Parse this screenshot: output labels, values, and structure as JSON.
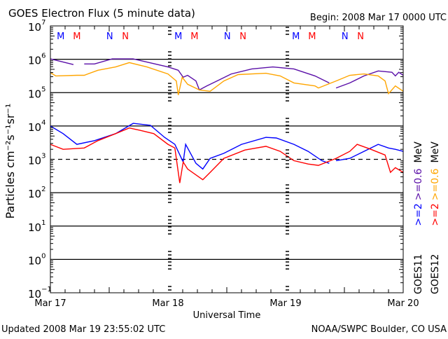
{
  "chart_data": {
    "type": "line",
    "title": "GOES Electron Flux (5 minute data)",
    "begin": "Begin: 2008 Mar 17 0000 UTC",
    "xlabel": "Universal Time",
    "ylabel": "Particles cm⁻²s⁻¹sr⁻¹",
    "x_unit": "hours since begin",
    "xlim": [
      0,
      72
    ],
    "x_ticks": [
      {
        "h": 0,
        "label": "Mar 17"
      },
      {
        "h": 24,
        "label": "Mar 18"
      },
      {
        "h": 48,
        "label": "Mar 19"
      },
      {
        "h": 72,
        "label": "Mar 20"
      }
    ],
    "y_scale": "log",
    "ylim_log10": [
      -1,
      7
    ],
    "y_ticks": [
      {
        "base": "10",
        "exp": "7"
      },
      {
        "base": "10",
        "exp": "6"
      },
      {
        "base": "10",
        "exp": "5"
      },
      {
        "base": "10",
        "exp": "4"
      },
      {
        "base": "10",
        "exp": "3"
      },
      {
        "base": "10",
        "exp": "2"
      },
      {
        "base": "10",
        "exp": "1"
      },
      {
        "base": "10",
        "exp": "0"
      },
      {
        "base": "10",
        "exp": "−1"
      }
    ],
    "threshold_log10": 3,
    "series": [
      {
        "name": "GOES11 >=0.6 MeV",
        "color": "#5a0fa8",
        "x": [
          0,
          4.7,
          null,
          6.9,
          9,
          12.6,
          16.9,
          24,
          26.1,
          27.1,
          28,
          29.7,
          30.4,
          31.9,
          34,
          36.9,
          41.1,
          45.4,
          49.7,
          54,
          56.9,
          null,
          58.3,
          61.1,
          64,
          66.9,
          69.7,
          70.4,
          71.1,
          72
        ],
        "log10_values": [
          6.01,
          5.84,
          null,
          5.86,
          5.86,
          6.01,
          6.01,
          5.77,
          5.67,
          5.46,
          5.52,
          5.35,
          5.08,
          5.2,
          5.35,
          5.56,
          5.71,
          5.77,
          5.71,
          5.5,
          5.29,
          null,
          5.14,
          5.29,
          5.5,
          5.65,
          5.61,
          5.5,
          5.61,
          5.52
        ]
      },
      {
        "name": "GOES12 >=0.6 MeV",
        "color": "#ffa500",
        "x": [
          0,
          1.1,
          5.4,
          6.9,
          9.7,
          13.3,
          16.1,
          19.7,
          24,
          25.7,
          26.1,
          26.9,
          28,
          30.4,
          32.6,
          35.4,
          38.3,
          44,
          46.9,
          49.7,
          54,
          54.7,
          58.3,
          61.1,
          64,
          66.9,
          68.3,
          69,
          70.4,
          72
        ],
        "log10_values": [
          5.6,
          5.5,
          5.52,
          5.52,
          5.67,
          5.77,
          5.9,
          5.77,
          5.56,
          5.35,
          4.93,
          5.46,
          5.25,
          5.08,
          5.04,
          5.35,
          5.54,
          5.58,
          5.5,
          5.29,
          5.2,
          5.14,
          5.35,
          5.52,
          5.56,
          5.5,
          5.35,
          4.97,
          5.2,
          5.04
        ]
      },
      {
        "name": "GOES11 >=2 MeV",
        "color": "#0000ff",
        "x": [
          0,
          2.6,
          5.4,
          9,
          13.3,
          16.9,
          20.4,
          23.3,
          25.4,
          27.1,
          27.6,
          29.7,
          31.1,
          32.6,
          35.4,
          39,
          44,
          46.1,
          49.7,
          52.6,
          55.4,
          56.9,
          null,
          58.3,
          61.1,
          64,
          66.9,
          69,
          70.4,
          72
        ],
        "log10_values": [
          4.0,
          3.77,
          3.45,
          3.56,
          3.77,
          4.08,
          4.02,
          3.66,
          3.45,
          2.92,
          3.45,
          2.88,
          2.71,
          3.03,
          3.18,
          3.45,
          3.66,
          3.64,
          3.45,
          3.24,
          2.96,
          2.88,
          null,
          2.96,
          3.03,
          3.24,
          3.45,
          3.34,
          3.3,
          3.24
        ]
      },
      {
        "name": "GOES12 >=2 MeV",
        "color": "#ff0000",
        "x": [
          0,
          2.6,
          6.9,
          9.7,
          13.3,
          16.1,
          18.3,
          21.1,
          24,
          25.4,
          26.4,
          27.1,
          28,
          31.1,
          32.6,
          35.4,
          39.7,
          44,
          46.9,
          49.7,
          52.6,
          54.7,
          58.3,
          61.1,
          62.6,
          65.4,
          68.3,
          69.4,
          70.4,
          72
        ],
        "log10_values": [
          3.45,
          3.3,
          3.34,
          3.56,
          3.77,
          3.94,
          3.87,
          3.77,
          3.45,
          3.34,
          2.29,
          2.92,
          2.71,
          2.39,
          2.61,
          3.03,
          3.28,
          3.39,
          3.24,
          2.96,
          2.86,
          2.82,
          3.03,
          3.24,
          3.45,
          3.3,
          3.13,
          2.61,
          2.75,
          2.61
        ]
      }
    ],
    "markers": [
      {
        "label": "M",
        "color": "#0000ff",
        "h": [
          2.1,
          26.1,
          50.1
        ]
      },
      {
        "label": "M",
        "color": "#ff0000",
        "h": [
          5.4,
          29.4,
          53.4
        ]
      },
      {
        "label": "N",
        "color": "#0000ff",
        "h": [
          12.1,
          36.1,
          60.1
        ]
      },
      {
        "label": "N",
        "color": "#ff0000",
        "h": [
          15.3,
          39.3,
          63.3
        ]
      }
    ],
    "legend": [
      {
        "sat": "GOES11",
        "lo": ">=2",
        "hi": ">=0.6",
        "unit": "MeV",
        "lo_color": "#0000ff",
        "hi_color": "#5a0fa8"
      },
      {
        "sat": "GOES12",
        "lo": ">=2",
        "hi": ">=0.6",
        "unit": "MeV",
        "lo_color": "#ff0000",
        "hi_color": "#ffa500"
      }
    ],
    "legend_placement": "right"
  },
  "footer": {
    "updated": "Updated 2008 Mar 19 23:55:02 UTC",
    "source": "NOAA/SWPC Boulder, CO USA"
  }
}
